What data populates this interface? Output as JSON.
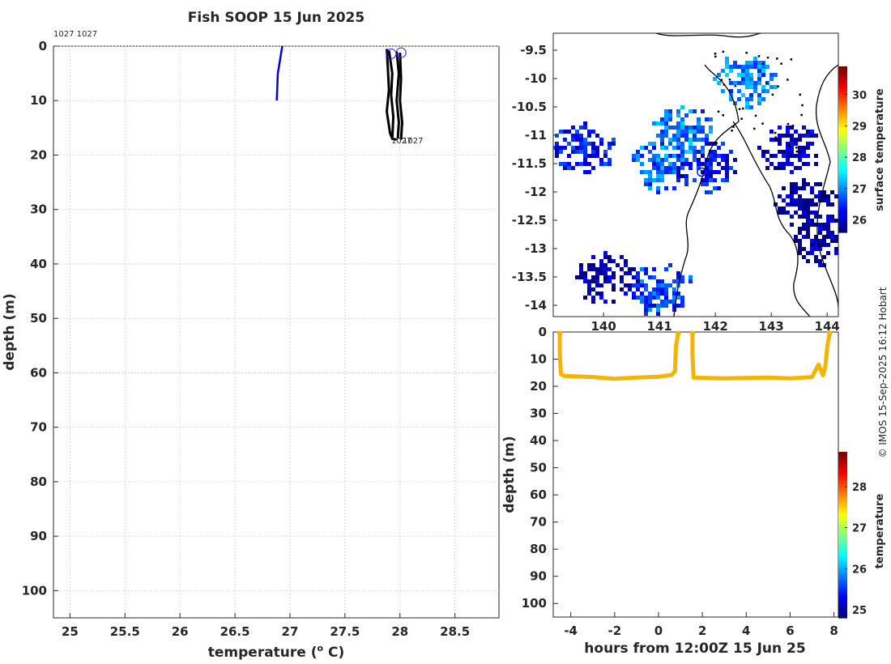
{
  "title": "Fish SOOP 15 Jun 2025",
  "copyright": "© IMOS 15-Sep-2025 16:12 Hobart",
  "chart_data": [
    {
      "type": "line",
      "name": "profile",
      "xlabel": "temperature (",
      "xlabel_sup": "o",
      "xlabel_end": " C)",
      "ylabel": "depth (m)",
      "xlim": [
        24.85,
        28.9
      ],
      "ylim": [
        105,
        0
      ],
      "xticks": [
        "25",
        "25.5",
        "26",
        "26.5",
        "27",
        "27.5",
        "28",
        "28.5"
      ],
      "yticks": [
        "0",
        "10",
        "20",
        "30",
        "40",
        "50",
        "60",
        "70",
        "80",
        "90",
        "100"
      ],
      "top_labels": "1027 1027",
      "end_labels": [
        "1027",
        "1027"
      ],
      "series": [
        {
          "name": "surface profile",
          "color": "#0000dd",
          "points": [
            [
              26.93,
              0
            ],
            [
              26.89,
              5
            ],
            [
              26.88,
              10
            ]
          ]
        },
        {
          "name": "1027a",
          "color": "#000000",
          "points": [
            [
              27.88,
              0.5
            ],
            [
              27.89,
              4
            ],
            [
              27.9,
              8
            ],
            [
              27.88,
              12
            ],
            [
              27.91,
              16
            ],
            [
              27.93,
              17
            ]
          ]
        },
        {
          "name": "1027b",
          "color": "#000000",
          "points": [
            [
              27.9,
              0.8
            ],
            [
              27.93,
              5
            ],
            [
              27.92,
              9
            ],
            [
              27.94,
              13
            ],
            [
              27.93,
              17
            ],
            [
              27.97,
              17.2
            ]
          ]
        },
        {
          "name": "1027c",
          "color": "#000000",
          "points": [
            [
              27.97,
              1
            ],
            [
              27.99,
              5
            ],
            [
              27.97,
              10
            ],
            [
              27.99,
              14
            ],
            [
              27.98,
              17
            ]
          ]
        },
        {
          "name": "1027d",
          "color": "#000000",
          "points": [
            [
              28.0,
              1.2
            ],
            [
              28.01,
              6
            ],
            [
              28.0,
              10
            ],
            [
              28.02,
              14
            ],
            [
              28.01,
              17.2
            ]
          ]
        }
      ],
      "circles": [
        [
          27.92,
          1.4
        ],
        [
          28.01,
          1.2
        ]
      ]
    },
    {
      "type": "heatmap",
      "name": "map",
      "xticks": [
        "140",
        "141",
        "142",
        "143",
        "144"
      ],
      "yticks": [
        "-9.5",
        "-10",
        "-10.5",
        "-11",
        "-11.5",
        "-12",
        "-12.5",
        "-13",
        "-13.5",
        "-14"
      ],
      "xlim": [
        139.1,
        144.2
      ],
      "ylim": [
        -14.2,
        -9.2
      ],
      "colorbar_label": "surface temperature",
      "colorbar_ticks": [
        "26",
        "27",
        "28",
        "29",
        "30"
      ],
      "colorbar_range": [
        25.6,
        30.9
      ],
      "patches": [
        {
          "lon": 141.0,
          "lat": -13.7,
          "temp": 26.6
        },
        {
          "lon": 141.0,
          "lat": -11.5,
          "temp": 26.8
        },
        {
          "lon": 141.8,
          "lat": -11.5,
          "temp": 26.3
        },
        {
          "lon": 141.4,
          "lat": -10.9,
          "temp": 26.9
        },
        {
          "lon": 142.5,
          "lat": -10.0,
          "temp": 26.9
        },
        {
          "lon": 143.9,
          "lat": -12.8,
          "temp": 25.8
        },
        {
          "lon": 143.6,
          "lat": -12.2,
          "temp": 25.7
        },
        {
          "lon": 143.3,
          "lat": -11.2,
          "temp": 25.9
        },
        {
          "lon": 140.0,
          "lat": -13.5,
          "temp": 25.8
        },
        {
          "lon": 139.6,
          "lat": -11.2,
          "temp": 26.3
        }
      ],
      "ship_position": {
        "lon": 141.75,
        "lat": -11.65
      }
    },
    {
      "type": "scatter",
      "name": "depth-time",
      "xlabel": "hours from 12:00Z 15 Jun 25",
      "ylabel": "depth (m)",
      "xlim": [
        -4.8,
        8.2
      ],
      "ylim": [
        105,
        0
      ],
      "xticks": [
        "-4",
        "-2",
        "0",
        "2",
        "4",
        "6",
        "8"
      ],
      "yticks": [
        "0",
        "10",
        "20",
        "30",
        "40",
        "50",
        "60",
        "70",
        "80",
        "90",
        "100"
      ],
      "colorbar_label": "temperature",
      "colorbar_ticks": [
        "25",
        "26",
        "27",
        "28"
      ],
      "colorbar_range": [
        24.8,
        28.85
      ],
      "color": "#f5b400",
      "segments": [
        [
          [
            -4.5,
            0.5
          ],
          [
            -4.5,
            8
          ],
          [
            -4.45,
            15.5
          ],
          [
            -4.3,
            16.2
          ],
          [
            -3,
            16.6
          ],
          [
            -2,
            17.2
          ],
          [
            -1,
            16.8
          ],
          [
            0,
            16.5
          ],
          [
            0.6,
            15.8
          ],
          [
            0.75,
            14.5
          ],
          [
            0.8,
            5
          ],
          [
            0.9,
            0.5
          ]
        ],
        [
          [
            1.55,
            0.5
          ],
          [
            1.55,
            8
          ],
          [
            1.6,
            16.8
          ],
          [
            3,
            17.1
          ],
          [
            4,
            16.9
          ],
          [
            5,
            16.8
          ],
          [
            6,
            17.1
          ],
          [
            7,
            16.6
          ],
          [
            7.3,
            12
          ],
          [
            7.5,
            16
          ],
          [
            7.6,
            13
          ],
          [
            7.7,
            5
          ],
          [
            7.8,
            0.5
          ]
        ]
      ]
    }
  ]
}
